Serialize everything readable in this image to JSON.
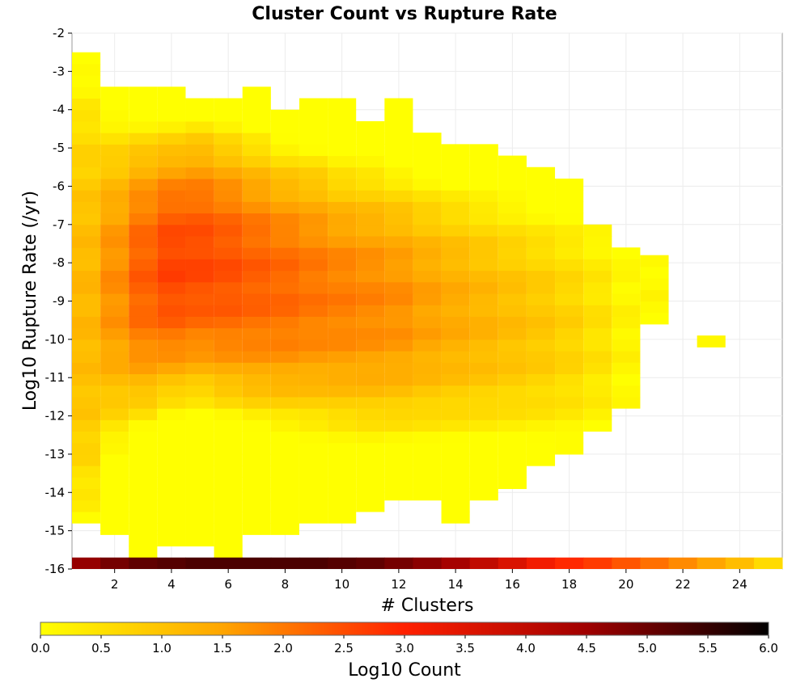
{
  "chart_data": {
    "type": "heatmap",
    "title": "Cluster Count vs Rupture Rate",
    "xlabel": "# Clusters",
    "ylabel": "Log10 Rupture Rate (/yr)",
    "xlim": [
      0.5,
      25.5
    ],
    "ylim": [
      -16,
      -2
    ],
    "x_ticks": [
      2,
      4,
      6,
      8,
      10,
      12,
      14,
      16,
      18,
      20,
      22,
      24
    ],
    "y_ticks": [
      -2,
      -3,
      -4,
      -5,
      -6,
      -7,
      -8,
      -9,
      -10,
      -11,
      -12,
      -13,
      -14,
      -15,
      -16
    ],
    "grid": true,
    "bin_width_x": 1,
    "bin_height_y": 0.3,
    "colorbar": {
      "label": "Log10 Count",
      "min": 0.0,
      "max": 6.0,
      "ticks": [
        "0.0",
        "0.5",
        "1.0",
        "1.5",
        "2.0",
        "2.5",
        "3.0",
        "3.5",
        "4.0",
        "4.5",
        "5.0",
        "5.5",
        "6.0"
      ],
      "colormap": [
        "#ffff00",
        "#ffa500",
        "#ff2000",
        "#a00000",
        "#000000"
      ],
      "placement": "bottom"
    },
    "columns": [
      {
        "x": 1,
        "y_min": -14.8,
        "y_max": -2.6,
        "center": -9.0,
        "peak": 1.2,
        "spread": 6.0
      },
      {
        "x": 2,
        "y_min": -15.1,
        "y_max": -3.3,
        "center": -8.5,
        "peak": 1.75,
        "spread": 4.4
      },
      {
        "x": 3,
        "y_min": -15.7,
        "y_max": -3.3,
        "center": -8.3,
        "peak": 2.3,
        "spread": 4.1
      },
      {
        "x": 4,
        "y_min": -15.4,
        "y_max": -3.3,
        "center": -8.1,
        "peak": 2.6,
        "spread": 3.9
      },
      {
        "x": 5,
        "y_min": -15.4,
        "y_max": -3.6,
        "center": -8.0,
        "peak": 2.55,
        "spread": 3.9
      },
      {
        "x": 6,
        "y_min": -15.7,
        "y_max": -3.6,
        "center": -8.2,
        "peak": 2.45,
        "spread": 3.9
      },
      {
        "x": 7,
        "y_min": -15.1,
        "y_max": -3.3,
        "center": -8.4,
        "peak": 2.3,
        "spread": 3.9
      },
      {
        "x": 8,
        "y_min": -15.1,
        "y_max": -3.9,
        "center": -8.6,
        "peak": 2.2,
        "spread": 3.8
      },
      {
        "x": 9,
        "y_min": -14.8,
        "y_max": -3.6,
        "center": -8.7,
        "peak": 2.05,
        "spread": 3.8
      },
      {
        "x": 10,
        "y_min": -14.8,
        "y_max": -3.6,
        "center": -8.9,
        "peak": 1.95,
        "spread": 3.7
      },
      {
        "x": 11,
        "y_min": -14.5,
        "y_max": -4.2,
        "center": -9.0,
        "peak": 1.85,
        "spread": 3.7
      },
      {
        "x": 12,
        "y_min": -14.2,
        "y_max": -3.6,
        "center": -9.1,
        "peak": 1.75,
        "spread": 3.6
      },
      {
        "x": 13,
        "y_min": -14.2,
        "y_max": -4.5,
        "center": -9.2,
        "peak": 1.55,
        "spread": 3.5
      },
      {
        "x": 14,
        "y_min": -14.8,
        "y_max": -4.8,
        "center": -9.3,
        "peak": 1.4,
        "spread": 3.4
      },
      {
        "x": 15,
        "y_min": -14.2,
        "y_max": -4.8,
        "center": -9.4,
        "peak": 1.25,
        "spread": 3.3
      },
      {
        "x": 16,
        "y_min": -13.9,
        "y_max": -5.1,
        "center": -9.5,
        "peak": 1.1,
        "spread": 3.2
      },
      {
        "x": 17,
        "y_min": -13.3,
        "y_max": -5.4,
        "center": -9.6,
        "peak": 0.95,
        "spread": 3.1
      },
      {
        "x": 18,
        "y_min": -13.0,
        "y_max": -5.7,
        "center": -9.7,
        "peak": 0.75,
        "spread": 3.0
      },
      {
        "x": 19,
        "y_min": -12.4,
        "y_max": -6.9,
        "center": -9.8,
        "peak": 0.5,
        "spread": 2.8
      },
      {
        "x": 20,
        "y_min": -11.8,
        "y_max": -7.5,
        "center": -9.8,
        "peak": 0.2,
        "spread": 2.0
      },
      {
        "x": 21,
        "y_min": -9.6,
        "y_max": -7.8,
        "center": -8.7,
        "peak": 0.1,
        "spread": 1.0
      },
      {
        "x": 23,
        "y_min": -10.2,
        "y_max": -9.9,
        "center": -10.0,
        "peak": 0.05,
        "spread": 0.5
      }
    ],
    "zero_rate_row": {
      "y": -16,
      "values": [
        4.6,
        4.9,
        5.1,
        5.2,
        5.3,
        5.3,
        5.3,
        5.3,
        5.3,
        5.2,
        5.1,
        4.9,
        4.7,
        4.4,
        4.0,
        3.6,
        3.2,
        2.9,
        2.7,
        2.4,
        2.1,
        1.8,
        1.5,
        1.1,
        0.6
      ]
    }
  }
}
